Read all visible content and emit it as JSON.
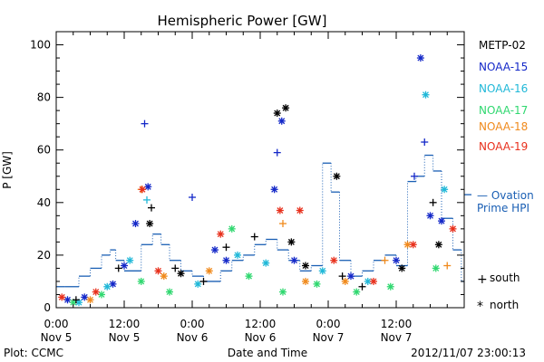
{
  "chart_data": {
    "type": "scatter",
    "title": "Hemispheric Power [GW]",
    "ylabel": "P [GW]",
    "xlabel": "Date and Time",
    "ylim": [
      0,
      105
    ],
    "xlim_hours": [
      0,
      72
    ],
    "yticks": [
      0,
      20,
      40,
      60,
      80,
      100
    ],
    "xticks": [
      {
        "hour": 0,
        "time": "0:00",
        "date": "Nov 5"
      },
      {
        "hour": 12,
        "time": "12:00",
        "date": "Nov 5"
      },
      {
        "hour": 24,
        "time": "0:00",
        "date": "Nov 6"
      },
      {
        "hour": 36,
        "time": "12:00",
        "date": "Nov 6"
      },
      {
        "hour": 48,
        "time": "0:00",
        "date": "Nov 7"
      },
      {
        "hour": 60,
        "time": "12:00",
        "date": "Nov 7"
      }
    ],
    "footer_left": "Plot: CCMC",
    "footer_right": "2012/11/07 23:00:13",
    "legend": {
      "placement": "right",
      "satellites": [
        {
          "name": "METP-02",
          "color": "#000000"
        },
        {
          "name": "NOAA-15",
          "color": "#1428c8"
        },
        {
          "name": "NOAA-16",
          "color": "#20b8d8"
        },
        {
          "name": "NOAA-17",
          "color": "#30d870"
        },
        {
          "name": "NOAA-18",
          "color": "#f08a1c"
        },
        {
          "name": "NOAA-19",
          "color": "#e8301c"
        }
      ],
      "model": {
        "line1": "— Ovation",
        "line2": "Prime HPI",
        "color": "#1a5fb4"
      },
      "markers": [
        {
          "symbol": "+",
          "label": "south"
        },
        {
          "symbol": "*",
          "label": "north"
        }
      ]
    },
    "ovation_color": "#1a5fb4",
    "ovation_step": [
      [
        0,
        8
      ],
      [
        1.5,
        8
      ],
      [
        4,
        12
      ],
      [
        6,
        15
      ],
      [
        8,
        20
      ],
      [
        9.5,
        22
      ],
      [
        10.5,
        18
      ],
      [
        12,
        14
      ],
      [
        15,
        24
      ],
      [
        17,
        28
      ],
      [
        18.5,
        24
      ],
      [
        20,
        18
      ],
      [
        22,
        14
      ],
      [
        24,
        12
      ],
      [
        26,
        10
      ],
      [
        29,
        14
      ],
      [
        31,
        18
      ],
      [
        33,
        20
      ],
      [
        35,
        24
      ],
      [
        37,
        26
      ],
      [
        39,
        22
      ],
      [
        41,
        18
      ],
      [
        43,
        14
      ],
      [
        45,
        16
      ],
      [
        47,
        55
      ],
      [
        48.5,
        44
      ],
      [
        50,
        18
      ],
      [
        52,
        12
      ],
      [
        54,
        14
      ],
      [
        56,
        18
      ],
      [
        58,
        20
      ],
      [
        60,
        16
      ],
      [
        62,
        48
      ],
      [
        63.5,
        50
      ],
      [
        65,
        58
      ],
      [
        66.5,
        52
      ],
      [
        68,
        34
      ],
      [
        70,
        22
      ],
      [
        71.5,
        10
      ]
    ],
    "points": [
      {
        "sat": "NOAA-15",
        "m": "*",
        "h": 2.0,
        "v": 3
      },
      {
        "sat": "NOAA-15",
        "m": "*",
        "h": 5.0,
        "v": 4
      },
      {
        "sat": "NOAA-15",
        "m": "*",
        "h": 10.0,
        "v": 9
      },
      {
        "sat": "NOAA-15",
        "m": "*",
        "h": 12.0,
        "v": 16
      },
      {
        "sat": "NOAA-15",
        "m": "*",
        "h": 14.0,
        "v": 32
      },
      {
        "sat": "NOAA-15",
        "m": "+",
        "h": 15.6,
        "v": 70
      },
      {
        "sat": "NOAA-15",
        "m": "*",
        "h": 16.2,
        "v": 46
      },
      {
        "sat": "NOAA-15",
        "m": "+",
        "h": 24.0,
        "v": 42
      },
      {
        "sat": "NOAA-15",
        "m": "*",
        "h": 28.0,
        "v": 22
      },
      {
        "sat": "NOAA-15",
        "m": "*",
        "h": 30.0,
        "v": 18
      },
      {
        "sat": "NOAA-15",
        "m": "*",
        "h": 38.5,
        "v": 45
      },
      {
        "sat": "NOAA-15",
        "m": "+",
        "h": 39.0,
        "v": 59
      },
      {
        "sat": "NOAA-15",
        "m": "*",
        "h": 39.8,
        "v": 71
      },
      {
        "sat": "NOAA-15",
        "m": "*",
        "h": 42.0,
        "v": 18
      },
      {
        "sat": "NOAA-15",
        "m": "*",
        "h": 52.0,
        "v": 12
      },
      {
        "sat": "NOAA-15",
        "m": "*",
        "h": 60.0,
        "v": 18
      },
      {
        "sat": "NOAA-15",
        "m": "+",
        "h": 63.2,
        "v": 50
      },
      {
        "sat": "NOAA-15",
        "m": "*",
        "h": 64.3,
        "v": 95
      },
      {
        "sat": "NOAA-15",
        "m": "+",
        "h": 65.0,
        "v": 63
      },
      {
        "sat": "NOAA-15",
        "m": "*",
        "h": 66.0,
        "v": 35
      },
      {
        "sat": "NOAA-15",
        "m": "*",
        "h": 68.0,
        "v": 33
      },
      {
        "sat": "NOAA-16",
        "m": "*",
        "h": 4.0,
        "v": 2
      },
      {
        "sat": "NOAA-16",
        "m": "*",
        "h": 9.0,
        "v": 8
      },
      {
        "sat": "NOAA-16",
        "m": "*",
        "h": 13.0,
        "v": 18
      },
      {
        "sat": "NOAA-16",
        "m": "+",
        "h": 16.0,
        "v": 41
      },
      {
        "sat": "NOAA-16",
        "m": "*",
        "h": 25.0,
        "v": 9
      },
      {
        "sat": "NOAA-16",
        "m": "*",
        "h": 32.0,
        "v": 20
      },
      {
        "sat": "NOAA-16",
        "m": "*",
        "h": 37.0,
        "v": 17
      },
      {
        "sat": "NOAA-16",
        "m": "*",
        "h": 47.0,
        "v": 14
      },
      {
        "sat": "NOAA-16",
        "m": "*",
        "h": 55.0,
        "v": 10
      },
      {
        "sat": "NOAA-16",
        "m": "*",
        "h": 65.2,
        "v": 81
      },
      {
        "sat": "NOAA-16",
        "m": "*",
        "h": 68.5,
        "v": 45
      },
      {
        "sat": "NOAA-17",
        "m": "*",
        "h": 3.0,
        "v": 2
      },
      {
        "sat": "NOAA-17",
        "m": "*",
        "h": 8.0,
        "v": 5
      },
      {
        "sat": "NOAA-17",
        "m": "*",
        "h": 15.0,
        "v": 10
      },
      {
        "sat": "NOAA-17",
        "m": "*",
        "h": 20.0,
        "v": 6
      },
      {
        "sat": "NOAA-17",
        "m": "*",
        "h": 31.0,
        "v": 30
      },
      {
        "sat": "NOAA-17",
        "m": "*",
        "h": 34.0,
        "v": 12
      },
      {
        "sat": "NOAA-17",
        "m": "*",
        "h": 40.0,
        "v": 6
      },
      {
        "sat": "NOAA-17",
        "m": "*",
        "h": 46.0,
        "v": 9
      },
      {
        "sat": "NOAA-17",
        "m": "*",
        "h": 53.0,
        "v": 6
      },
      {
        "sat": "NOAA-17",
        "m": "*",
        "h": 59.0,
        "v": 8
      },
      {
        "sat": "NOAA-17",
        "m": "*",
        "h": 67.0,
        "v": 15
      },
      {
        "sat": "NOAA-18",
        "m": "*",
        "h": 6.0,
        "v": 3
      },
      {
        "sat": "NOAA-18",
        "m": "+",
        "h": 15.0,
        "v": 45
      },
      {
        "sat": "NOAA-18",
        "m": "*",
        "h": 19.0,
        "v": 12
      },
      {
        "sat": "NOAA-18",
        "m": "*",
        "h": 27.0,
        "v": 14
      },
      {
        "sat": "NOAA-18",
        "m": "+",
        "h": 40.0,
        "v": 32
      },
      {
        "sat": "NOAA-18",
        "m": "*",
        "h": 44.0,
        "v": 10
      },
      {
        "sat": "NOAA-18",
        "m": "*",
        "h": 51.0,
        "v": 10
      },
      {
        "sat": "NOAA-18",
        "m": "+",
        "h": 58.0,
        "v": 18
      },
      {
        "sat": "NOAA-18",
        "m": "*",
        "h": 62.0,
        "v": 24
      },
      {
        "sat": "NOAA-18",
        "m": "+",
        "h": 69.0,
        "v": 16
      },
      {
        "sat": "NOAA-19",
        "m": "*",
        "h": 1.0,
        "v": 4
      },
      {
        "sat": "NOAA-19",
        "m": "*",
        "h": 7.0,
        "v": 6
      },
      {
        "sat": "NOAA-19",
        "m": "*",
        "h": 15.2,
        "v": 45
      },
      {
        "sat": "NOAA-19",
        "m": "*",
        "h": 18.0,
        "v": 14
      },
      {
        "sat": "NOAA-19",
        "m": "*",
        "h": 29.0,
        "v": 28
      },
      {
        "sat": "NOAA-19",
        "m": "*",
        "h": 39.5,
        "v": 37
      },
      {
        "sat": "NOAA-19",
        "m": "*",
        "h": 43.0,
        "v": 37
      },
      {
        "sat": "NOAA-19",
        "m": "*",
        "h": 49.0,
        "v": 18
      },
      {
        "sat": "NOAA-19",
        "m": "*",
        "h": 56.0,
        "v": 10
      },
      {
        "sat": "NOAA-19",
        "m": "*",
        "h": 63.0,
        "v": 24
      },
      {
        "sat": "NOAA-19",
        "m": "*",
        "h": 70.0,
        "v": 30
      },
      {
        "sat": "METP-02",
        "m": "+",
        "h": 3.5,
        "v": 3
      },
      {
        "sat": "METP-02",
        "m": "+",
        "h": 11.0,
        "v": 15
      },
      {
        "sat": "METP-02",
        "m": "*",
        "h": 16.5,
        "v": 32
      },
      {
        "sat": "METP-02",
        "m": "+",
        "h": 16.8,
        "v": 38
      },
      {
        "sat": "METP-02",
        "m": "+",
        "h": 21.0,
        "v": 15
      },
      {
        "sat": "METP-02",
        "m": "*",
        "h": 22.0,
        "v": 13
      },
      {
        "sat": "METP-02",
        "m": "+",
        "h": 26.0,
        "v": 10
      },
      {
        "sat": "METP-02",
        "m": "+",
        "h": 30.0,
        "v": 23
      },
      {
        "sat": "METP-02",
        "m": "+",
        "h": 35.0,
        "v": 27
      },
      {
        "sat": "METP-02",
        "m": "*",
        "h": 39.0,
        "v": 74
      },
      {
        "sat": "METP-02",
        "m": "*",
        "h": 40.5,
        "v": 76
      },
      {
        "sat": "METP-02",
        "m": "*",
        "h": 41.5,
        "v": 25
      },
      {
        "sat": "METP-02",
        "m": "*",
        "h": 44.0,
        "v": 16
      },
      {
        "sat": "METP-02",
        "m": "*",
        "h": 49.5,
        "v": 50
      },
      {
        "sat": "METP-02",
        "m": "+",
        "h": 50.5,
        "v": 12
      },
      {
        "sat": "METP-02",
        "m": "+",
        "h": 54.0,
        "v": 8
      },
      {
        "sat": "METP-02",
        "m": "*",
        "h": 61.0,
        "v": 15
      },
      {
        "sat": "METP-02",
        "m": "+",
        "h": 66.5,
        "v": 40
      },
      {
        "sat": "METP-02",
        "m": "*",
        "h": 67.5,
        "v": 24
      }
    ]
  }
}
